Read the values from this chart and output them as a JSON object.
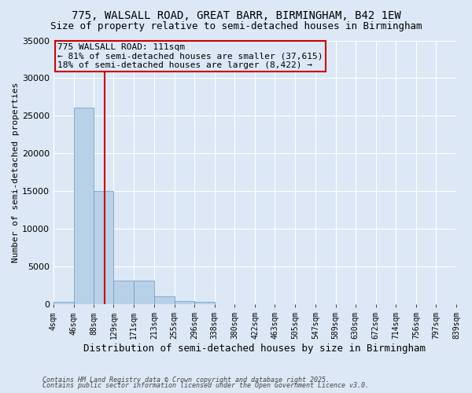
{
  "title_line1": "775, WALSALL ROAD, GREAT BARR, BIRMINGHAM, B42 1EW",
  "title_line2": "Size of property relative to semi-detached houses in Birmingham",
  "xlabel": "Distribution of semi-detached houses by size in Birmingham",
  "ylabel": "Number of semi-detached properties",
  "annotation_title": "775 WALSALL ROAD: 111sqm",
  "annotation_line2": "← 81% of semi-detached houses are smaller (37,615)",
  "annotation_line3": "18% of semi-detached houses are larger (8,422) →",
  "footer_line1": "Contains HM Land Registry data © Crown copyright and database right 2025.",
  "footer_line2": "Contains public sector information licensed under the Open Government Licence v3.0.",
  "bin_edges": [
    4,
    46,
    88,
    129,
    171,
    213,
    255,
    296,
    338,
    380,
    422,
    463,
    505,
    547,
    589,
    630,
    672,
    714,
    756,
    797,
    839
  ],
  "bar_values": [
    300,
    26100,
    15000,
    3100,
    3100,
    1100,
    400,
    350,
    0,
    0,
    0,
    0,
    0,
    0,
    0,
    0,
    0,
    0,
    0,
    0
  ],
  "property_size": 111,
  "bar_color": "#b8d0e8",
  "bar_edge_color": "#6899c0",
  "vline_color": "#cc0000",
  "annotation_box_color": "#cc0000",
  "background_color": "#dce8f5",
  "ylim": [
    0,
    35000
  ],
  "yticks": [
    0,
    5000,
    10000,
    15000,
    20000,
    25000,
    30000,
    35000
  ]
}
